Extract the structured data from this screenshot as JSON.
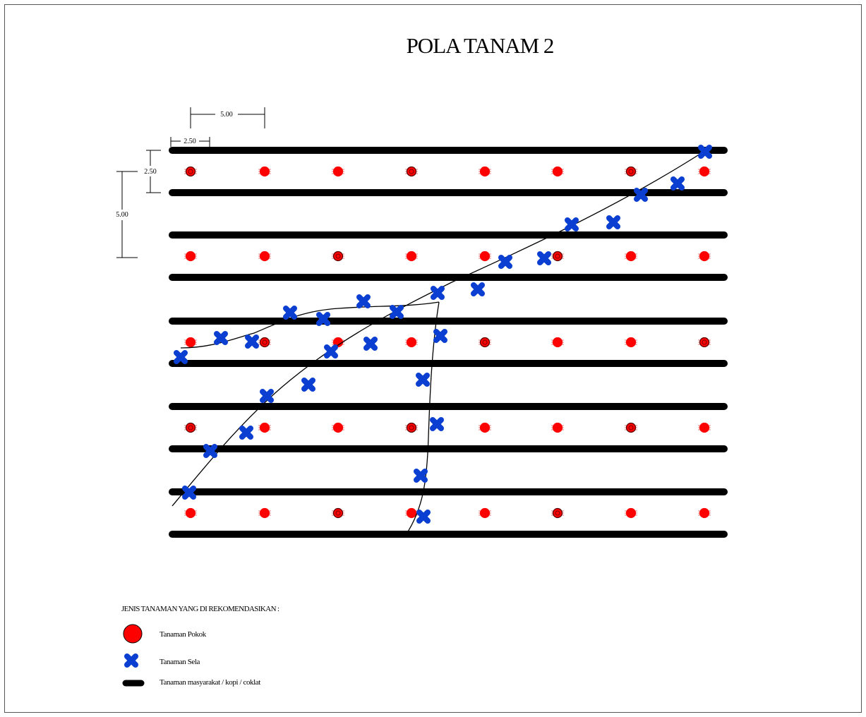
{
  "title": "POLA TANAM 2",
  "dimensions": {
    "horizontal_main": "5.00",
    "horizontal_sub": "2.50",
    "vertical_sub": "2.50",
    "vertical_main": "5.00"
  },
  "legend": {
    "heading": "JENIS TANAMAN YANG DI REKOMENDASIKAN :",
    "items": [
      {
        "symbol": "red-circle",
        "label": "Tanaman Pokok",
        "color": "#ff0000"
      },
      {
        "symbol": "blue-cross",
        "label": "Tanaman Sela",
        "color": "#0033cc"
      },
      {
        "symbol": "black-bar",
        "label": "Tanaman masyarakat / kopi / coklat",
        "color": "#000000"
      }
    ]
  },
  "grid": {
    "hedge_rows": 10,
    "main_plant_rows": 5,
    "main_plant_columns": 8
  },
  "colors": {
    "main_plant": "#ff0000",
    "intercrop": "#0a3fd1",
    "hedge": "#000000",
    "border": "#555555"
  }
}
